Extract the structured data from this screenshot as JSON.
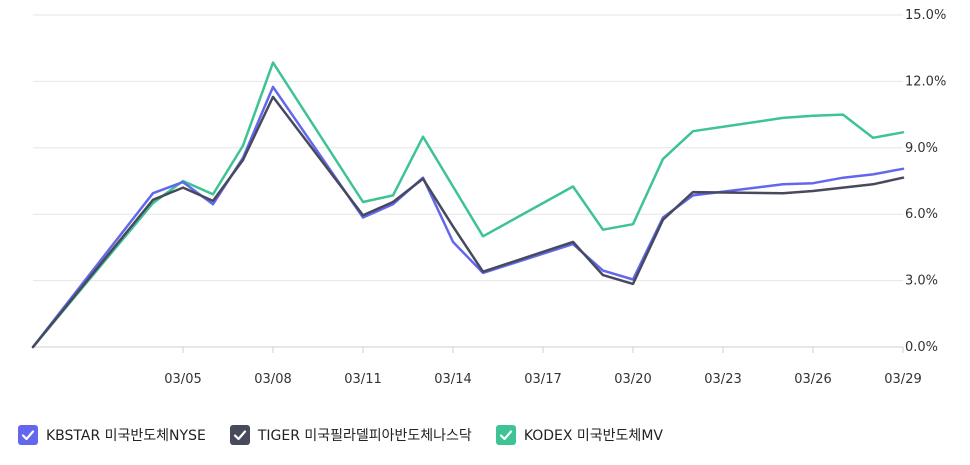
{
  "chart_data": {
    "type": "line",
    "title": "",
    "xlabel": "",
    "ylabel": "",
    "y_axis_position": "right",
    "ylim": [
      0,
      15
    ],
    "yticks": [
      "0.0%",
      "3.0%",
      "6.0%",
      "9.0%",
      "12.0%",
      "15.0%"
    ],
    "grid": true,
    "legend_position": "bottom-left",
    "x": [
      "03/02",
      "03/04",
      "03/05",
      "03/06",
      "03/07",
      "03/08",
      "03/11",
      "03/12",
      "03/13",
      "03/14",
      "03/15",
      "03/18",
      "03/19",
      "03/20",
      "03/21",
      "03/22",
      "03/25",
      "03/26",
      "03/27",
      "03/28",
      "03/29"
    ],
    "x_index": [
      0,
      4,
      5,
      6,
      7,
      8,
      11,
      12,
      13,
      14,
      15,
      18,
      19,
      20,
      21,
      22,
      25,
      26,
      27,
      28,
      29
    ],
    "xticks": [
      "03/05",
      "03/08",
      "03/11",
      "03/14",
      "03/17",
      "03/20",
      "03/23",
      "03/26",
      "03/29"
    ],
    "xtick_index": [
      5,
      8,
      11,
      14,
      17,
      20,
      23,
      26,
      29
    ],
    "series": [
      {
        "name": "KBSTAR 미국반도체NYSE",
        "color": "#6267ee",
        "values": [
          0.0,
          6.95,
          7.45,
          6.45,
          8.55,
          11.75,
          5.85,
          6.45,
          7.65,
          4.75,
          3.35,
          4.65,
          3.45,
          3.05,
          5.85,
          6.85,
          7.35,
          7.4,
          7.65,
          7.8,
          8.05
        ]
      },
      {
        "name": "TIGER 미국필라델피아반도체나스닥",
        "color": "#474a5c",
        "values": [
          0.0,
          6.65,
          7.2,
          6.6,
          8.45,
          11.3,
          5.95,
          6.55,
          7.6,
          5.45,
          3.4,
          4.75,
          3.25,
          2.85,
          5.75,
          7.0,
          6.95,
          7.05,
          7.2,
          7.35,
          7.65
        ]
      },
      {
        "name": "KODEX 미국반도체MV",
        "color": "#3ec394",
        "values": [
          0.0,
          6.5,
          7.5,
          6.9,
          9.1,
          12.85,
          6.55,
          6.85,
          9.5,
          7.25,
          5.0,
          7.25,
          5.3,
          5.55,
          8.5,
          9.75,
          10.35,
          10.45,
          10.5,
          9.45,
          9.7
        ]
      }
    ]
  }
}
